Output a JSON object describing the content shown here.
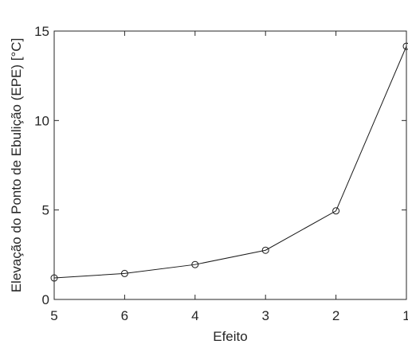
{
  "chart_data": {
    "type": "line",
    "title": "",
    "xlabel": "Efeito",
    "ylabel": "Elevação do Ponto de Ebulição (EPE) [°C]",
    "categories": [
      "5",
      "6",
      "4",
      "3",
      "2",
      "1"
    ],
    "series": [
      {
        "values": [
          1.2,
          1.45,
          1.95,
          2.75,
          4.95,
          14.15
        ],
        "marker": "circle",
        "color": "#1a1a1a"
      }
    ],
    "ylim": [
      0,
      15
    ],
    "yticks": [
      "0",
      "5",
      "10",
      "15"
    ],
    "grid": false,
    "legend": "none"
  }
}
